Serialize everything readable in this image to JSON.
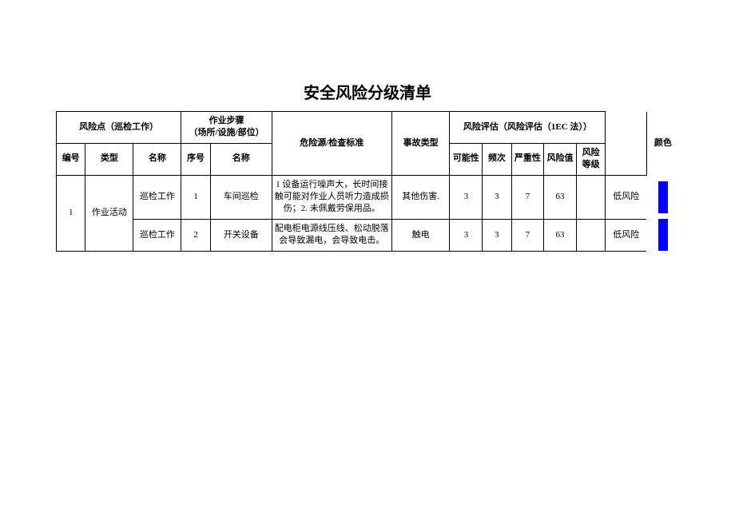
{
  "title": "安全风险分级清单",
  "headers": {
    "risk_point": "风险点（巡检工作）",
    "work_step": "作业步骤\n（场所/设施/部位）",
    "hazard": "危险源/检查标准",
    "accident": "事故类型",
    "risk_eval": "风险评估（风险评估（1EC 法））",
    "num": "编号",
    "type": "类型",
    "name": "名称",
    "seq": "序号",
    "step_name": "名称",
    "prob": "可能性",
    "freq": "频次",
    "sev": "严重性",
    "val": "风险值",
    "level": "风险等级",
    "color": "颜色"
  },
  "group": {
    "num": "1",
    "type": "作业活动"
  },
  "rows": [
    {
      "name": "巡检工作",
      "seq": "1",
      "step": "车间巡检",
      "hazard": "1 设备运行噪声大，长时间接触可能对作业人员听力造成损伤；2. 未佩戴劳保用品。",
      "accident": "其他伤害.",
      "prob": "3",
      "freq": "3",
      "sev": "7",
      "val": "63",
      "level": "低风险",
      "color": "#0000ff"
    },
    {
      "name": "巡检工作",
      "seq": "2",
      "step": "开关设备",
      "hazard": "配电柜电源线压线、松动脱落会导致漏电，会导致电击。",
      "accident": "触电",
      "prob": "3",
      "freq": "3",
      "sev": "7",
      "val": "63",
      "level": "低风险",
      "color": "#0000ff"
    }
  ]
}
